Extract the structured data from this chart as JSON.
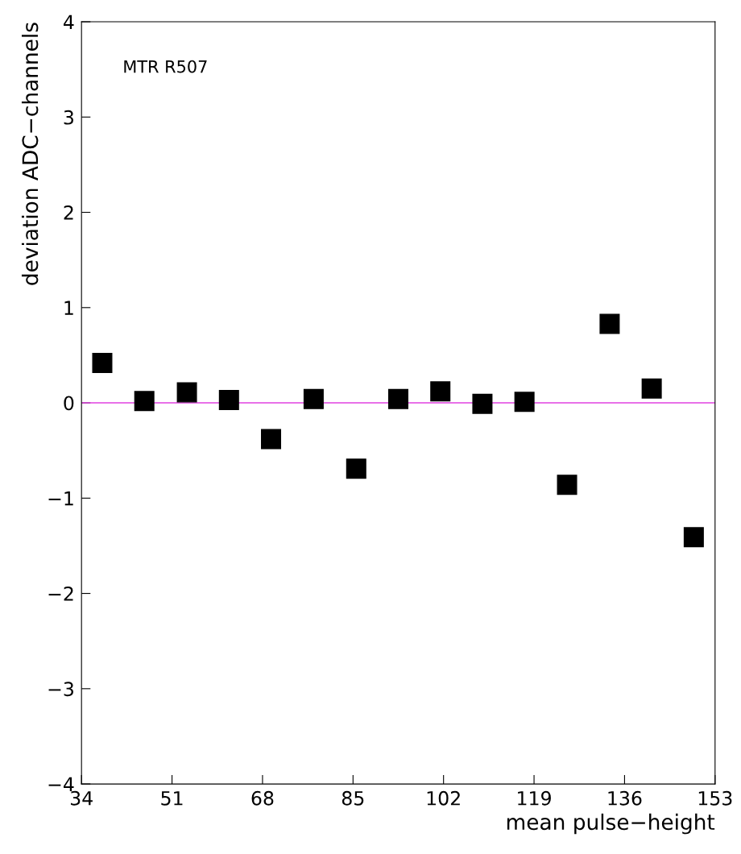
{
  "chart_data": {
    "type": "scatter",
    "xlabel": "mean pulse−height",
    "ylabel": "deviation ADC−channels",
    "annotations": [
      "MTR R507"
    ],
    "x": [
      37.9,
      45.8,
      53.8,
      61.7,
      69.6,
      77.6,
      85.6,
      93.5,
      101.4,
      109.3,
      117.2,
      125.2,
      133.2,
      141.1,
      149.0
    ],
    "values": [
      0.42,
      0.02,
      0.11,
      0.03,
      -0.38,
      0.04,
      -0.69,
      0.04,
      0.12,
      -0.01,
      0.01,
      -0.86,
      0.83,
      0.15,
      -1.41
    ],
    "color": "#000000",
    "marker": "square",
    "xlim": [
      34,
      153
    ],
    "xticks": [
      34,
      51,
      68,
      85,
      102,
      119,
      136,
      153
    ],
    "ylim": [
      -4,
      4
    ],
    "yticks": [
      -4,
      -3,
      -2,
      -1,
      0,
      1,
      2,
      3,
      4
    ],
    "ref_lines": [
      {
        "axis": "y",
        "value": 0,
        "color": "#e040e0"
      }
    ],
    "grid": false,
    "legend": false
  }
}
